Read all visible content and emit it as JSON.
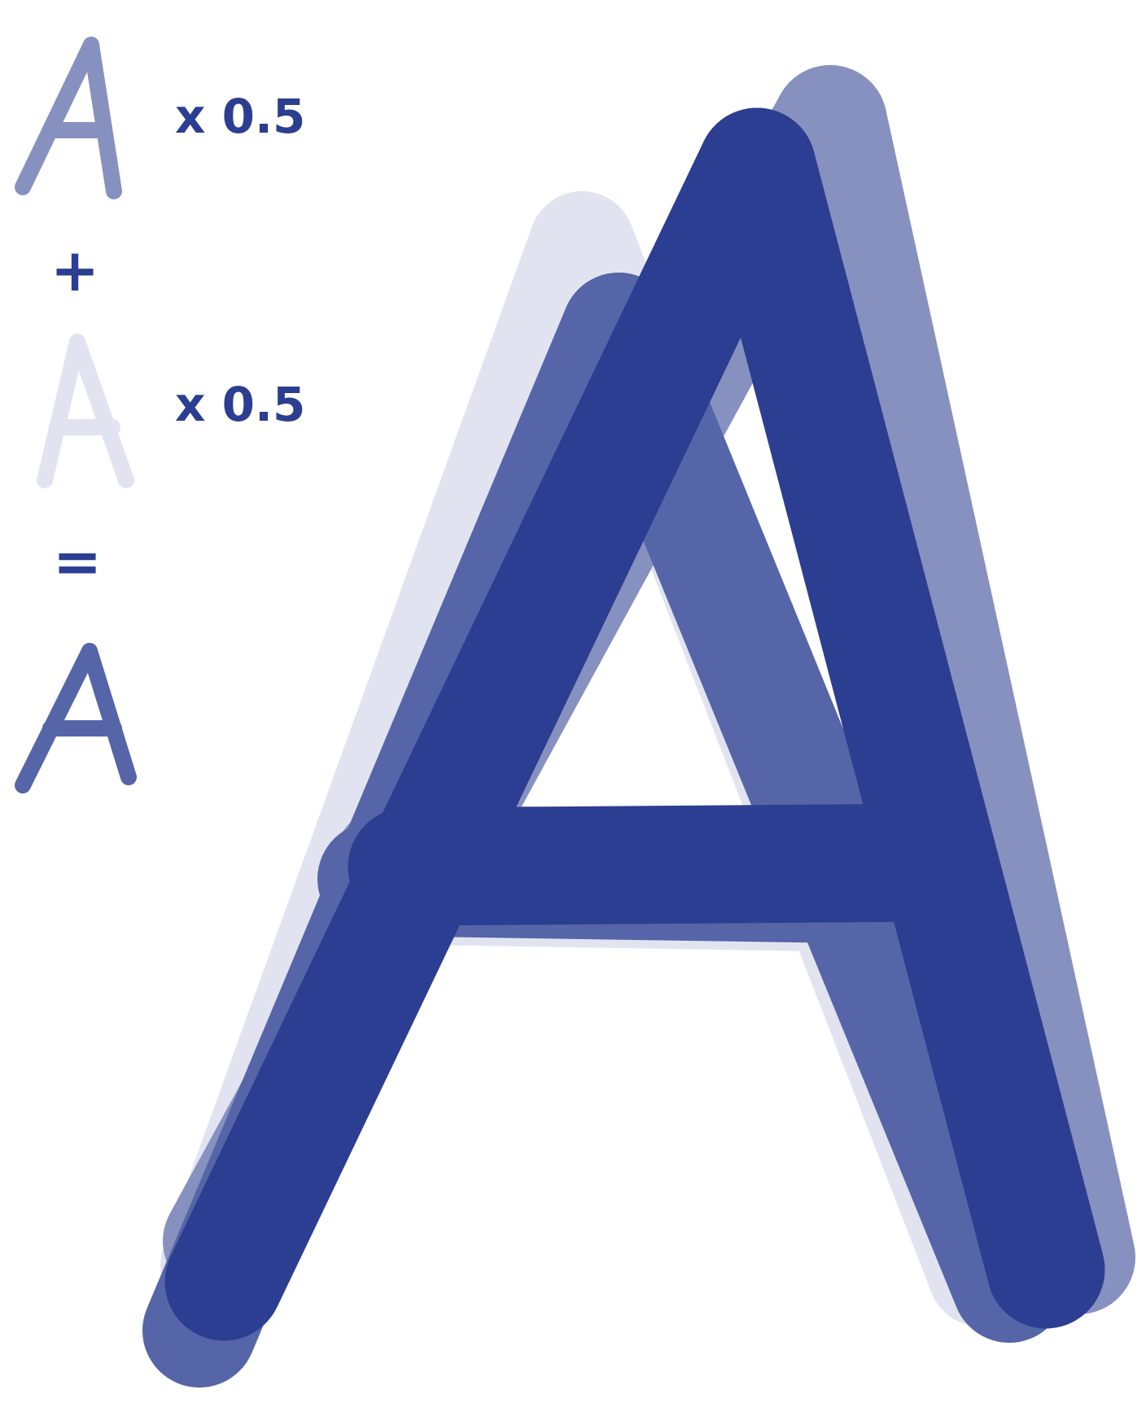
{
  "diagram": {
    "colors": {
      "background": "#ffffff",
      "base": "#2c3e91",
      "layer_a": "#8791c0",
      "layer_b": "#e1e4f0",
      "result": "#5565a8",
      "bold": "#2c3e91"
    },
    "equation": {
      "term_a": {
        "glyph": "A",
        "multiplier_label": "x 0.5"
      },
      "plus_symbol": "+",
      "term_b": {
        "glyph": "A",
        "multiplier_label": "x 0.5"
      },
      "equals_symbol": "=",
      "result": {
        "glyph": "A"
      }
    },
    "large_illustration": {
      "glyph": "A",
      "layers": [
        "layer_b",
        "layer_a",
        "result",
        "bold"
      ]
    }
  }
}
